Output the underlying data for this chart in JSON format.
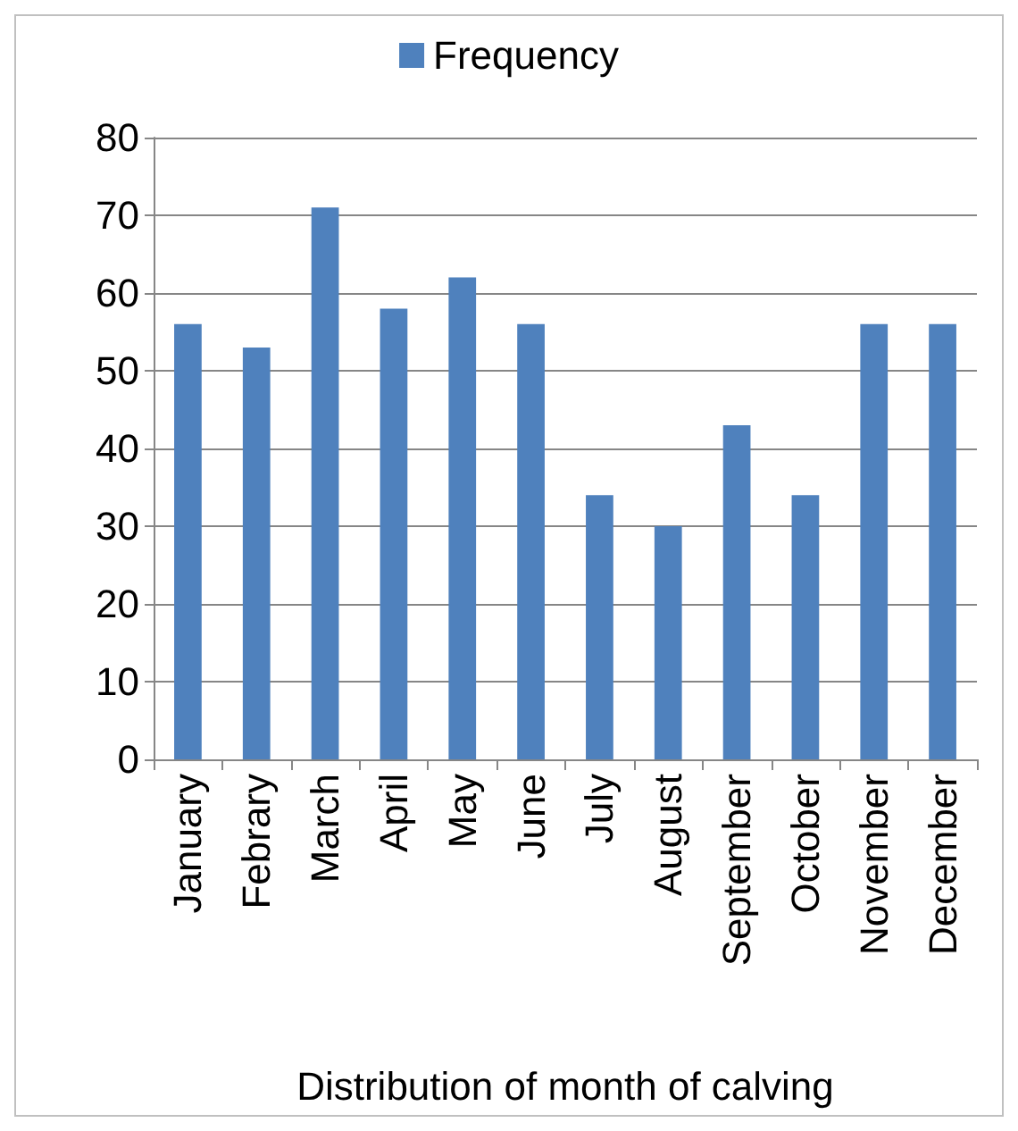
{
  "chart_data": {
    "type": "bar",
    "xlabel": "Distribution of month of calving",
    "categories": [
      "January",
      "Febrary",
      "March",
      "April",
      "May",
      "June",
      "July",
      "August",
      "September",
      "October",
      "November",
      "December"
    ],
    "series": [
      {
        "name": "Frequency",
        "color": "#4f81bd",
        "values": [
          56,
          53,
          71,
          58,
          62,
          56,
          34,
          30,
          43,
          34,
          56,
          56
        ]
      }
    ],
    "ylim": [
      0,
      80
    ],
    "yticks": [
      0,
      10,
      20,
      30,
      40,
      50,
      60,
      70,
      80
    ],
    "grid": "y",
    "legend": "top"
  }
}
